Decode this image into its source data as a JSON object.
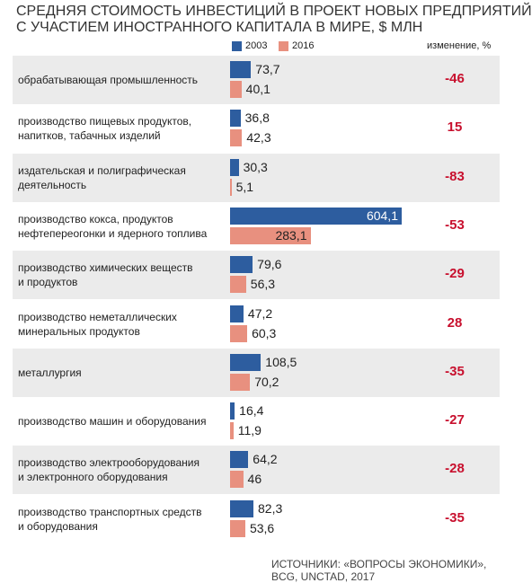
{
  "chart_data": {
    "type": "bar",
    "orientation": "horizontal",
    "title": [
      "СРЕДНЯЯ СТОИМОСТЬ ИНВЕСТИЦИЙ В ПРОЕКТ НОВЫХ ПРЕДПРИЯТИЙ",
      "С УЧАСТИЕМ ИНОСТРАННОГО КАПИТАЛА В МИРЕ, $ МЛН"
    ],
    "categories": [
      "обрабатывающая промышленность",
      "производство пищевых продуктов,\nнапитков, табачных изделий",
      "издательская и полиграфическая\nдеятельность",
      "производство кокса, продуктов\nнефтепереогонки и ядерного топлива",
      "производство химических веществ\nи продуктов",
      "производство неметаллических\nминеральных продуктов",
      "металлургия",
      "производство машин и оборудования",
      "производство электрооборудования\nи электронного оборудования",
      "производство транспортных средств\nи оборудования"
    ],
    "series": [
      {
        "name": "2003",
        "color": "#2d5d9f",
        "values": [
          73.7,
          36.8,
          30.3,
          604.1,
          79.6,
          47.2,
          108.5,
          16.4,
          64.2,
          82.3
        ],
        "value_labels": [
          "73,7",
          "36,8",
          "30,3",
          "604,1",
          "79,6",
          "47,2",
          "108,5",
          "16,4",
          "64,2",
          "82,3"
        ]
      },
      {
        "name": "2016",
        "color": "#e8907f",
        "values": [
          40.1,
          42.3,
          5.1,
          283.1,
          56.3,
          60.3,
          70.2,
          11.9,
          46,
          53.6
        ],
        "value_labels": [
          "40,1",
          "42,3",
          "5,1",
          "283,1",
          "56,3",
          "60,3",
          "70,2",
          "11,9",
          "46",
          "53,6"
        ]
      }
    ],
    "change_header": "изменение, %",
    "change": {
      "color": "#c8102e",
      "values": [
        -46,
        15,
        -83,
        -53,
        -29,
        28,
        -35,
        -27,
        -28,
        -35
      ]
    },
    "source": "ИСТОЧНИКИ: «ВОПРОСЫ ЭКОНОМИКИ», BCG, UNCTAD, 2017"
  }
}
